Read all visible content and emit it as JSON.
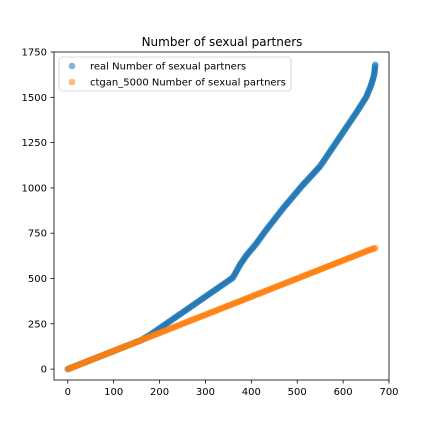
{
  "chart_data": {
    "type": "scatter",
    "title": "Number of sexual partners",
    "xlabel": "",
    "ylabel": "",
    "xlim": [
      -30,
      700
    ],
    "ylim": [
      -60,
      1750
    ],
    "xticks": [
      0,
      100,
      200,
      300,
      400,
      500,
      600,
      700
    ],
    "yticks": [
      0,
      250,
      500,
      750,
      1000,
      1250,
      1500,
      1750
    ],
    "grid": false,
    "legend_position": "upper left",
    "series": [
      {
        "name": "real Number of sexual partners",
        "color": "#1f77b4",
        "alpha": 0.55,
        "x": [
          0,
          20,
          40,
          60,
          80,
          100,
          120,
          140,
          160,
          180,
          200,
          220,
          240,
          260,
          280,
          300,
          320,
          340,
          360,
          375,
          390,
          410,
          430,
          450,
          470,
          490,
          510,
          530,
          550,
          570,
          590,
          610,
          630,
          650,
          660,
          665,
          668,
          670
        ],
        "y": [
          0,
          20,
          40,
          60,
          80,
          100,
          120,
          140,
          160,
          190,
          225,
          260,
          295,
          330,
          365,
          400,
          435,
          470,
          505,
          575,
          630,
          690,
          760,
          825,
          890,
          950,
          1010,
          1065,
          1120,
          1195,
          1270,
          1345,
          1420,
          1500,
          1560,
          1600,
          1630,
          1680
        ]
      },
      {
        "name": "ctgan_5000 Number of sexual partners",
        "color": "#ff7f0e",
        "alpha": 0.55,
        "x": [
          0,
          20,
          40,
          60,
          80,
          100,
          120,
          140,
          160,
          180,
          200,
          220,
          240,
          260,
          280,
          300,
          320,
          340,
          360,
          380,
          400,
          420,
          440,
          460,
          480,
          500,
          520,
          540,
          560,
          580,
          600,
          620,
          640,
          660,
          670
        ],
        "y": [
          0,
          20,
          40,
          60,
          80,
          100,
          120,
          140,
          160,
          180,
          200,
          220,
          240,
          260,
          280,
          300,
          320,
          340,
          360,
          380,
          400,
          420,
          440,
          460,
          480,
          500,
          520,
          540,
          560,
          580,
          600,
          620,
          640,
          660,
          668
        ]
      }
    ]
  }
}
